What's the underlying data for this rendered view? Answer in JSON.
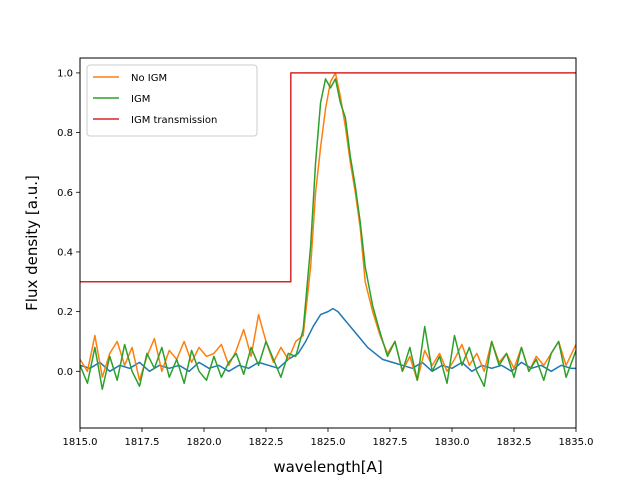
{
  "chart_data": {
    "type": "line",
    "xlabel": "wavelength[A]",
    "ylabel": "Flux density [a.u.]",
    "xlim": [
      1815.0,
      1835.0
    ],
    "ylim": [
      -0.19,
      1.05
    ],
    "x_ticks": [
      1815.0,
      1817.5,
      1820.0,
      1822.5,
      1825.0,
      1827.5,
      1830.0,
      1832.5,
      1835.0
    ],
    "x_tick_labels": [
      "1815.0",
      "1817.5",
      "1820.0",
      "1822.5",
      "1825.0",
      "1827.5",
      "1830.0",
      "1832.5",
      "1835.0"
    ],
    "y_ticks": [
      0.0,
      0.2,
      0.4,
      0.6,
      0.8,
      1.0
    ],
    "y_tick_labels": [
      "0.0",
      "0.2",
      "0.4",
      "0.6",
      "0.8",
      "1.0"
    ],
    "legend_position": "top-left",
    "grid": false,
    "series": [
      {
        "name": "",
        "color": "#1f77b4",
        "x": [
          1815.0,
          1815.4,
          1815.8,
          1816.2,
          1816.6,
          1817.0,
          1817.4,
          1817.8,
          1818.2,
          1818.6,
          1819.0,
          1819.4,
          1819.8,
          1820.2,
          1820.6,
          1821.0,
          1821.4,
          1821.8,
          1822.2,
          1822.6,
          1823.0,
          1823.4,
          1823.8,
          1824.1,
          1824.4,
          1824.7,
          1825.0,
          1825.2,
          1825.4,
          1825.6,
          1825.8,
          1826.0,
          1826.3,
          1826.6,
          1826.9,
          1827.2,
          1827.6,
          1828.0,
          1828.4,
          1828.8,
          1829.2,
          1829.6,
          1830.0,
          1830.4,
          1830.8,
          1831.2,
          1831.6,
          1832.0,
          1832.4,
          1832.8,
          1833.2,
          1833.6,
          1834.0,
          1834.4,
          1834.8,
          1835.0
        ],
        "y": [
          0.02,
          0.01,
          0.03,
          0.0,
          0.02,
          0.01,
          0.03,
          0.0,
          0.02,
          0.01,
          0.02,
          0.0,
          0.03,
          0.01,
          0.02,
          0.0,
          0.02,
          0.01,
          0.03,
          0.02,
          0.01,
          0.04,
          0.06,
          0.1,
          0.15,
          0.19,
          0.2,
          0.21,
          0.2,
          0.18,
          0.16,
          0.14,
          0.11,
          0.08,
          0.06,
          0.04,
          0.03,
          0.02,
          0.01,
          0.03,
          0.0,
          0.02,
          0.01,
          0.03,
          0.0,
          0.02,
          0.01,
          0.02,
          0.0,
          0.03,
          0.01,
          0.02,
          0.0,
          0.02,
          0.01,
          0.01
        ]
      },
      {
        "name": "No IGM",
        "color": "#ff7f0e",
        "x": [
          1815.0,
          1815.3,
          1815.6,
          1815.9,
          1816.2,
          1816.5,
          1816.8,
          1817.1,
          1817.4,
          1817.7,
          1818.0,
          1818.3,
          1818.6,
          1818.9,
          1819.2,
          1819.5,
          1819.8,
          1820.1,
          1820.4,
          1820.7,
          1821.0,
          1821.3,
          1821.6,
          1821.9,
          1822.2,
          1822.5,
          1822.8,
          1823.1,
          1823.4,
          1823.7,
          1824.0,
          1824.3,
          1824.5,
          1824.7,
          1824.9,
          1825.1,
          1825.3,
          1825.5,
          1825.7,
          1825.9,
          1826.1,
          1826.3,
          1826.5,
          1826.8,
          1827.1,
          1827.4,
          1827.7,
          1828.0,
          1828.3,
          1828.6,
          1828.9,
          1829.2,
          1829.5,
          1829.8,
          1830.1,
          1830.4,
          1830.7,
          1831.0,
          1831.3,
          1831.6,
          1831.9,
          1832.2,
          1832.5,
          1832.8,
          1833.1,
          1833.4,
          1833.7,
          1834.0,
          1834.3,
          1834.6,
          1835.0
        ],
        "y": [
          0.04,
          0.0,
          0.12,
          -0.02,
          0.06,
          0.1,
          0.02,
          0.08,
          -0.03,
          0.05,
          0.11,
          0.0,
          0.07,
          0.04,
          0.1,
          0.03,
          0.08,
          0.05,
          0.06,
          0.09,
          0.02,
          0.07,
          0.14,
          0.05,
          0.19,
          0.1,
          0.03,
          0.08,
          0.04,
          0.1,
          0.12,
          0.35,
          0.6,
          0.75,
          0.88,
          0.97,
          1.0,
          0.92,
          0.82,
          0.7,
          0.6,
          0.48,
          0.3,
          0.2,
          0.12,
          0.06,
          0.1,
          0.0,
          0.05,
          -0.03,
          0.07,
          0.02,
          0.06,
          0.0,
          0.04,
          0.09,
          0.02,
          0.06,
          0.0,
          0.1,
          0.03,
          0.06,
          0.01,
          0.08,
          0.0,
          0.05,
          0.02,
          0.06,
          0.1,
          0.02,
          0.09
        ]
      },
      {
        "name": "IGM",
        "color": "#2ca02c",
        "x": [
          1815.0,
          1815.3,
          1815.6,
          1815.9,
          1816.2,
          1816.5,
          1816.8,
          1817.1,
          1817.4,
          1817.7,
          1818.0,
          1818.3,
          1818.6,
          1818.9,
          1819.2,
          1819.5,
          1819.8,
          1820.1,
          1820.4,
          1820.7,
          1821.0,
          1821.3,
          1821.6,
          1821.9,
          1822.2,
          1822.5,
          1822.8,
          1823.1,
          1823.4,
          1823.7,
          1824.0,
          1824.3,
          1824.5,
          1824.7,
          1824.9,
          1825.1,
          1825.3,
          1825.5,
          1825.7,
          1825.9,
          1826.1,
          1826.3,
          1826.5,
          1826.8,
          1827.1,
          1827.4,
          1827.7,
          1828.0,
          1828.3,
          1828.6,
          1828.9,
          1829.2,
          1829.5,
          1829.8,
          1830.1,
          1830.4,
          1830.7,
          1831.0,
          1831.3,
          1831.6,
          1831.9,
          1832.2,
          1832.5,
          1832.8,
          1833.1,
          1833.4,
          1833.7,
          1834.0,
          1834.3,
          1834.6,
          1835.0
        ],
        "y": [
          0.02,
          -0.04,
          0.08,
          -0.06,
          0.05,
          -0.03,
          0.09,
          0.0,
          -0.05,
          0.06,
          0.01,
          0.08,
          -0.02,
          0.04,
          -0.04,
          0.07,
          0.0,
          -0.03,
          0.05,
          -0.02,
          0.03,
          0.06,
          -0.01,
          0.08,
          0.02,
          0.1,
          0.04,
          -0.02,
          0.06,
          0.05,
          0.14,
          0.42,
          0.7,
          0.9,
          0.98,
          0.95,
          0.98,
          0.9,
          0.85,
          0.72,
          0.62,
          0.5,
          0.35,
          0.22,
          0.13,
          0.05,
          0.1,
          0.0,
          0.08,
          -0.03,
          0.15,
          0.0,
          0.05,
          -0.04,
          0.12,
          0.02,
          0.08,
          0.0,
          -0.05,
          0.1,
          0.02,
          0.06,
          -0.02,
          0.08,
          0.0,
          0.04,
          -0.03,
          0.06,
          0.1,
          -0.02,
          0.07
        ]
      },
      {
        "name": "IGM transmission",
        "color": "#d62728",
        "step": true,
        "x": [
          1815.0,
          1823.5,
          1823.5,
          1835.0
        ],
        "y": [
          0.3,
          0.3,
          1.0,
          1.0
        ]
      }
    ]
  }
}
